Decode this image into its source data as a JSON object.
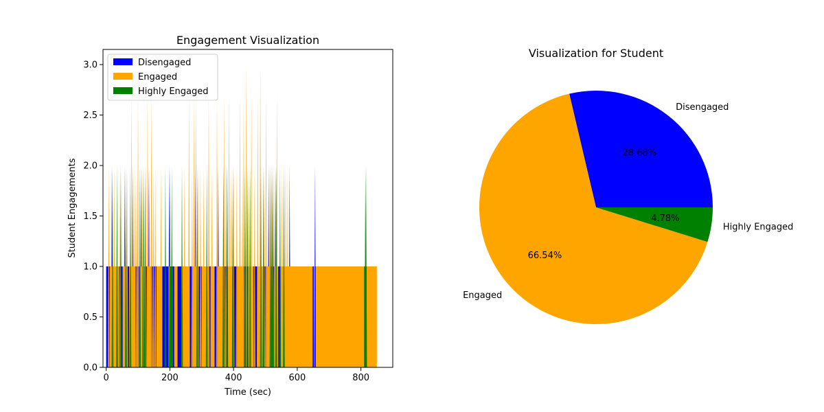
{
  "chart_data": [
    {
      "type": "area",
      "title": "Engagement Visualization",
      "xlabel": "Time (sec)",
      "ylabel": "Student Engagements",
      "xlim": [
        -10,
        900
      ],
      "ylim": [
        0,
        3.15
      ],
      "xticks": [
        0,
        200,
        400,
        600,
        800
      ],
      "xtick_labels": [
        "0",
        "200",
        "400",
        "600",
        "800"
      ],
      "yticks": [
        0,
        0.5,
        1.0,
        1.5,
        2.0,
        2.5,
        3.0
      ],
      "ytick_labels": [
        "0.0",
        "0.5",
        "1.0",
        "1.5",
        "2.0",
        "2.5",
        "3.0"
      ],
      "grid": false,
      "legend_position": "top-left",
      "series": [
        {
          "name": "Disengaged",
          "color": "#0000ff",
          "segments": [
            [
              0,
              12,
              1
            ],
            [
              40,
              52,
              1
            ],
            [
              64,
              72,
              1
            ],
            [
              92,
              104,
              1
            ],
            [
              120,
              128,
              1
            ],
            [
              140,
              158,
              1
            ],
            [
              176,
              196,
              1
            ],
            [
              208,
              214,
              1
            ],
            [
              224,
              236,
              1
            ],
            [
              262,
              272,
              1
            ],
            [
              290,
              300,
              1
            ],
            [
              320,
              328,
              1
            ],
            [
              340,
              350,
              1
            ],
            [
              368,
              382,
              1
            ],
            [
              396,
              412,
              1
            ],
            [
              430,
              446,
              1
            ],
            [
              462,
              474,
              1
            ],
            [
              492,
              504,
              1
            ],
            [
              518,
              530,
              1
            ],
            [
              540,
              548,
              1
            ],
            [
              648,
              652,
              1
            ],
            [
              654,
              658,
              1
            ]
          ],
          "spikes": [
            [
              18,
              2
            ],
            [
              58,
              2
            ],
            [
              84,
              2
            ],
            [
              110,
              2
            ],
            [
              134,
              2
            ],
            [
              198,
              2
            ],
            [
              280,
              2
            ],
            [
              352,
              2
            ],
            [
              380,
              2
            ],
            [
              440,
              2
            ],
            [
              510,
              2
            ],
            [
              532,
              2
            ],
            [
              576,
              2
            ],
            [
              656,
              2
            ],
            [
              728,
              1
            ]
          ]
        },
        {
          "name": "Engaged",
          "color": "#ffa500",
          "segments": [
            [
              12,
              40,
              1
            ],
            [
              52,
              64,
              1
            ],
            [
              72,
              92,
              1
            ],
            [
              104,
              120,
              1
            ],
            [
              128,
              140,
              1
            ],
            [
              158,
              176,
              1
            ],
            [
              196,
              208,
              1
            ],
            [
              214,
              224,
              1
            ],
            [
              236,
              262,
              1
            ],
            [
              272,
              290,
              1
            ],
            [
              300,
              320,
              1
            ],
            [
              328,
              340,
              1
            ],
            [
              350,
              368,
              1
            ],
            [
              382,
              396,
              1
            ],
            [
              412,
              430,
              1
            ],
            [
              446,
              462,
              1
            ],
            [
              474,
              492,
              1
            ],
            [
              504,
              518,
              1
            ],
            [
              530,
              540,
              1
            ],
            [
              548,
              648,
              1
            ],
            [
              658,
              850,
              1
            ]
          ],
          "spikes": [
            [
              8,
              2
            ],
            [
              26,
              2
            ],
            [
              44,
              2
            ],
            [
              66,
              2
            ],
            [
              80,
              2.7
            ],
            [
              90,
              2
            ],
            [
              96,
              2
            ],
            [
              100,
              2.7
            ],
            [
              112,
              2
            ],
            [
              118,
              2
            ],
            [
              124,
              2
            ],
            [
              130,
              2.7
            ],
            [
              136,
              2
            ],
            [
              142,
              2.7
            ],
            [
              148,
              2
            ],
            [
              154,
              2
            ],
            [
              172,
              2
            ],
            [
              246,
              2
            ],
            [
              260,
              2.7
            ],
            [
              270,
              2
            ],
            [
              276,
              2.7
            ],
            [
              282,
              2.7
            ],
            [
              288,
              2
            ],
            [
              296,
              2
            ],
            [
              306,
              2
            ],
            [
              322,
              2.7
            ],
            [
              332,
              2
            ],
            [
              348,
              2.7
            ],
            [
              370,
              2.7
            ],
            [
              376,
              2
            ],
            [
              386,
              2.7
            ],
            [
              392,
              2
            ],
            [
              400,
              2
            ],
            [
              410,
              2
            ],
            [
              420,
              2.7
            ],
            [
              428,
              2
            ],
            [
              432,
              2.7
            ],
            [
              440,
              3
            ],
            [
              448,
              2
            ],
            [
              456,
              2.7
            ],
            [
              466,
              2
            ],
            [
              476,
              2.7
            ],
            [
              484,
              3
            ],
            [
              496,
              2
            ],
            [
              502,
              2.7
            ],
            [
              514,
              2
            ],
            [
              522,
              2
            ],
            [
              528,
              2
            ],
            [
              536,
              2.7
            ],
            [
              552,
              2
            ],
            [
              562,
              2
            ],
            [
              568,
              2
            ]
          ]
        },
        {
          "name": "Highly Engaged",
          "color": "#008000",
          "segments": [
            [
              200,
              210,
              1
            ],
            [
              810,
              818,
              1
            ]
          ],
          "spikes": [
            [
              20,
              2
            ],
            [
              34,
              2
            ],
            [
              46,
              2
            ],
            [
              62,
              2
            ],
            [
              76,
              2
            ],
            [
              106,
              2
            ],
            [
              116,
              2
            ],
            [
              122,
              2
            ],
            [
              186,
              2
            ],
            [
              200,
              2
            ],
            [
              206,
              2
            ],
            [
              238,
              2
            ],
            [
              286,
              2
            ],
            [
              316,
              2
            ],
            [
              368,
              2
            ],
            [
              380,
              2
            ],
            [
              398,
              2
            ],
            [
              436,
              2
            ],
            [
              444,
              2
            ],
            [
              452,
              2
            ],
            [
              486,
              2
            ],
            [
              494,
              2
            ],
            [
              516,
              2
            ],
            [
              520,
              2
            ],
            [
              524,
              2
            ],
            [
              534,
              2
            ],
            [
              546,
              2
            ],
            [
              558,
              2
            ],
            [
              814,
              2
            ],
            [
              816,
              2
            ]
          ]
        }
      ]
    },
    {
      "type": "pie",
      "title": "Visualization for Student",
      "startangle": 0,
      "slices": [
        {
          "label": "Disengaged",
          "value": 28.68,
          "pct_label": "28.68%",
          "color": "#0000ff"
        },
        {
          "label": "Engaged",
          "value": 66.54,
          "pct_label": "66.54%",
          "color": "#ffa500"
        },
        {
          "label": "Highly Engaged",
          "value": 4.78,
          "pct_label": "4.78%",
          "color": "#008000"
        }
      ]
    }
  ]
}
